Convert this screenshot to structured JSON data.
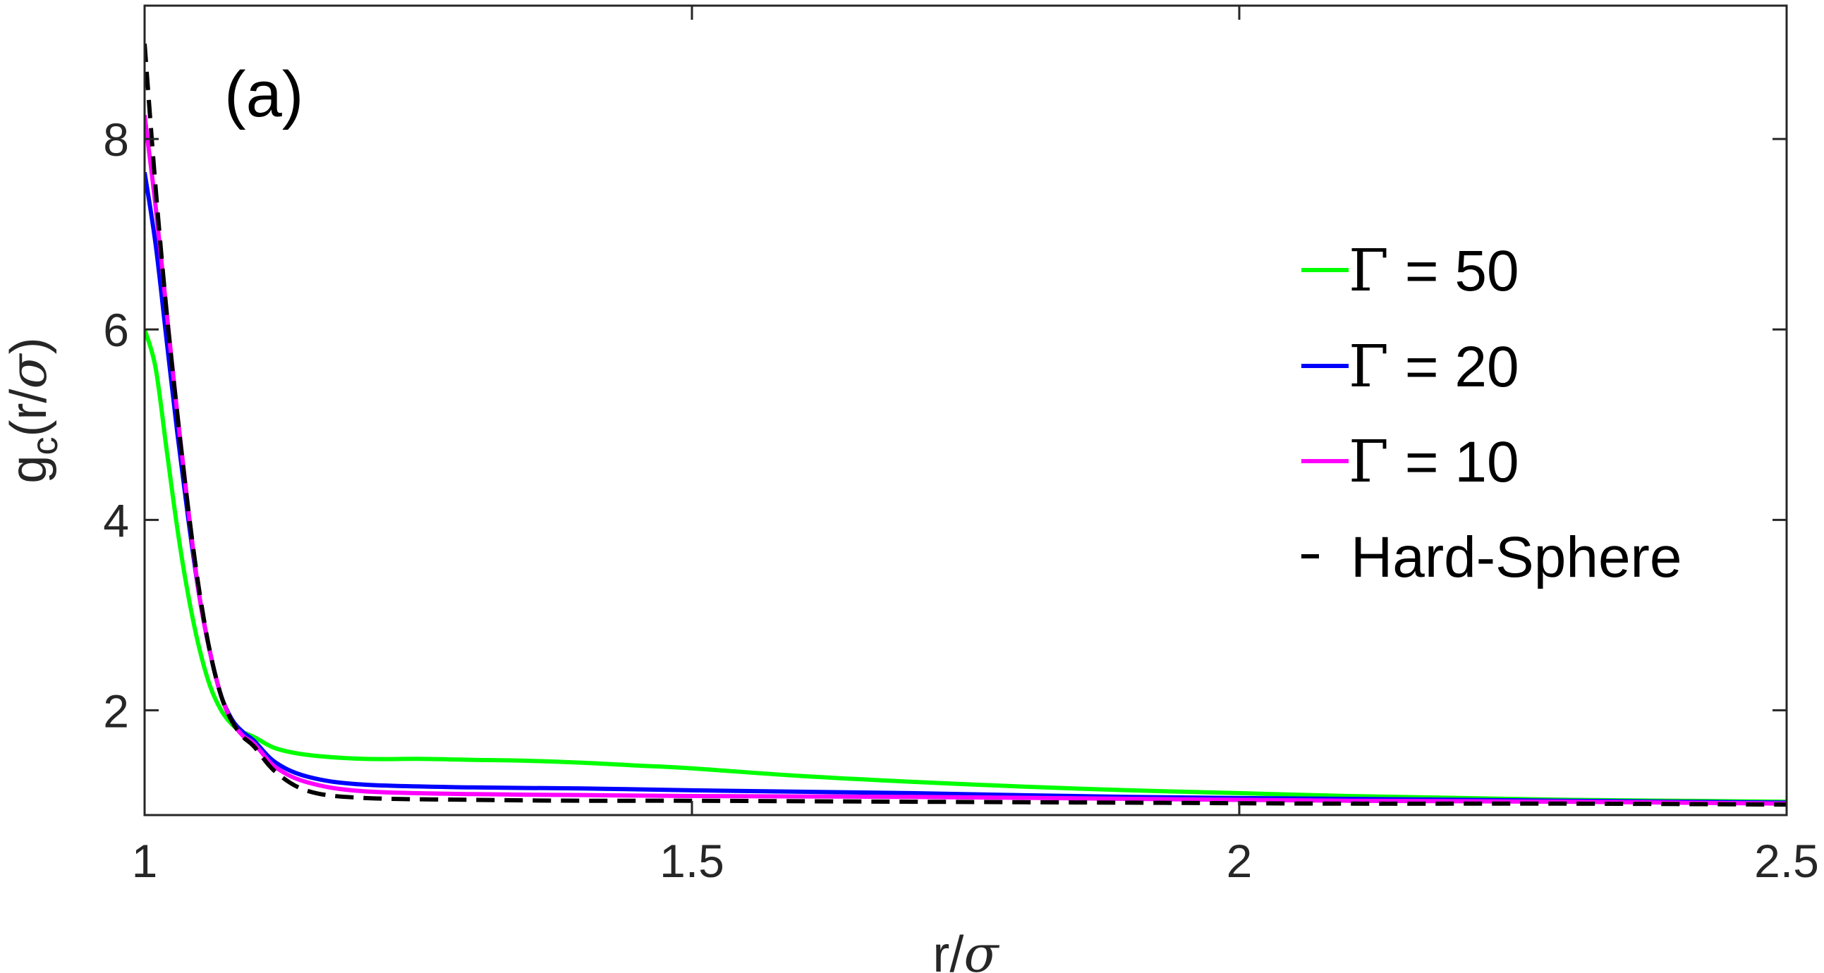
{
  "chart_data": {
    "type": "line",
    "panel_label": "(a)",
    "xlabel": {
      "main": "r/",
      "italic": "σ"
    },
    "ylabel": {
      "main": "g",
      "subscript": "c",
      "rest": "(r/",
      "italic": "σ",
      "close": ")"
    },
    "xlim": [
      1,
      2.5
    ],
    "ylim": [
      0.9,
      9.4
    ],
    "xticks": [
      1,
      1.5,
      2,
      2.5
    ],
    "xtick_labels": [
      "1",
      "1.5",
      "2",
      "2.5"
    ],
    "yticks": [
      2,
      4,
      6,
      8
    ],
    "ytick_labels": [
      "2",
      "4",
      "6",
      "8"
    ],
    "grid": false,
    "legend_position": "right",
    "series": [
      {
        "name_symbol": "Γ",
        "name_rest": " = 50",
        "color": "#00ff00",
        "dash": "solid",
        "x": [
          1.0,
          1.01,
          1.02,
          1.03,
          1.04,
          1.05,
          1.06,
          1.07,
          1.08,
          1.09,
          1.1,
          1.12,
          1.15,
          1.2,
          1.25,
          1.3,
          1.35,
          1.4,
          1.45,
          1.5,
          1.6,
          1.7,
          1.8,
          1.9,
          2.0,
          2.1,
          2.2,
          2.3,
          2.4,
          2.5
        ],
        "y": [
          6.0,
          5.6,
          4.75,
          3.9,
          3.2,
          2.65,
          2.25,
          2.0,
          1.85,
          1.77,
          1.72,
          1.6,
          1.53,
          1.49,
          1.49,
          1.48,
          1.47,
          1.45,
          1.42,
          1.39,
          1.31,
          1.25,
          1.2,
          1.16,
          1.13,
          1.1,
          1.08,
          1.06,
          1.05,
          1.04
        ]
      },
      {
        "name_symbol": "Γ",
        "name_rest": " = 20",
        "color": "#0000ff",
        "dash": "solid",
        "x": [
          1.0,
          1.01,
          1.02,
          1.03,
          1.04,
          1.05,
          1.06,
          1.07,
          1.08,
          1.09,
          1.1,
          1.12,
          1.15,
          1.2,
          1.3,
          1.4,
          1.5,
          1.7,
          1.9,
          2.1,
          2.3,
          2.5
        ],
        "y": [
          7.65,
          6.9,
          5.9,
          4.9,
          4.0,
          3.2,
          2.6,
          2.15,
          1.9,
          1.77,
          1.68,
          1.45,
          1.3,
          1.22,
          1.19,
          1.18,
          1.16,
          1.13,
          1.09,
          1.07,
          1.05,
          1.03
        ]
      },
      {
        "name_symbol": "Γ",
        "name_rest": " = 10",
        "color": "#ff00ff",
        "dash": "solid",
        "x": [
          1.0,
          1.01,
          1.02,
          1.03,
          1.04,
          1.05,
          1.06,
          1.07,
          1.08,
          1.09,
          1.1,
          1.12,
          1.15,
          1.2,
          1.3,
          1.4,
          1.5,
          1.7,
          1.9,
          2.1,
          2.3,
          2.5
        ],
        "y": [
          8.25,
          7.3,
          6.2,
          5.1,
          4.1,
          3.2,
          2.6,
          2.15,
          1.88,
          1.73,
          1.65,
          1.4,
          1.24,
          1.15,
          1.12,
          1.11,
          1.1,
          1.09,
          1.07,
          1.05,
          1.04,
          1.02
        ]
      },
      {
        "name_symbol": "",
        "name_rest": "Hard-Sphere",
        "color": "#000000",
        "dash": "dashed",
        "x": [
          1.0,
          1.01,
          1.02,
          1.03,
          1.04,
          1.05,
          1.06,
          1.07,
          1.08,
          1.09,
          1.1,
          1.12,
          1.15,
          1.2,
          1.3,
          1.4,
          1.5,
          1.7,
          1.9,
          2.1,
          2.3,
          2.5
        ],
        "y": [
          9.0,
          7.5,
          6.2,
          5.1,
          4.1,
          3.25,
          2.6,
          2.15,
          1.88,
          1.72,
          1.62,
          1.35,
          1.15,
          1.08,
          1.06,
          1.05,
          1.05,
          1.04,
          1.03,
          1.02,
          1.02,
          1.01
        ]
      }
    ]
  }
}
